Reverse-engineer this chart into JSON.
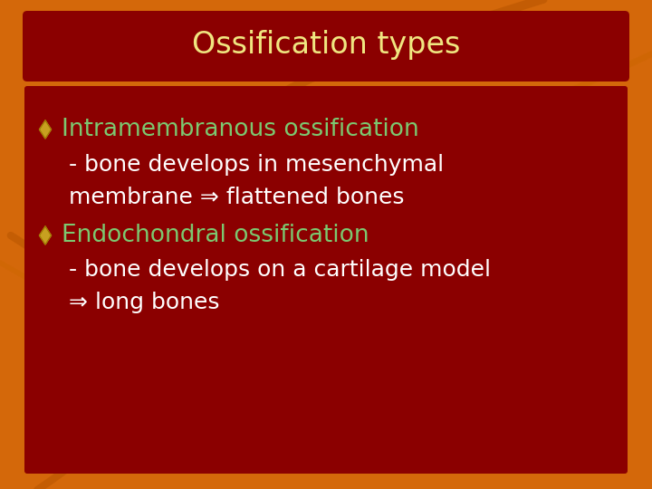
{
  "title": "Ossification types",
  "title_color": "#F0E680",
  "title_bg_color": "#8B0000",
  "background_color": "#D4680A",
  "content_bg_color": "#8B0000",
  "bullet_color": "#7CC870",
  "body_text_color": "#FFFFFF",
  "bullet1_heading": "Intramembranous ossification",
  "bullet1_line1": " - bone develops in mesenchymal",
  "bullet1_line2": " membrane ⇒ flattened bones",
  "bullet2_heading": "Endochondral ossification",
  "bullet2_line1": " - bone develops on a cartilage model",
  "bullet2_line2": " ⇒ long bones",
  "diamond_color": "#C8A020",
  "title_fontsize": 24,
  "heading_fontsize": 19,
  "body_fontsize": 18
}
